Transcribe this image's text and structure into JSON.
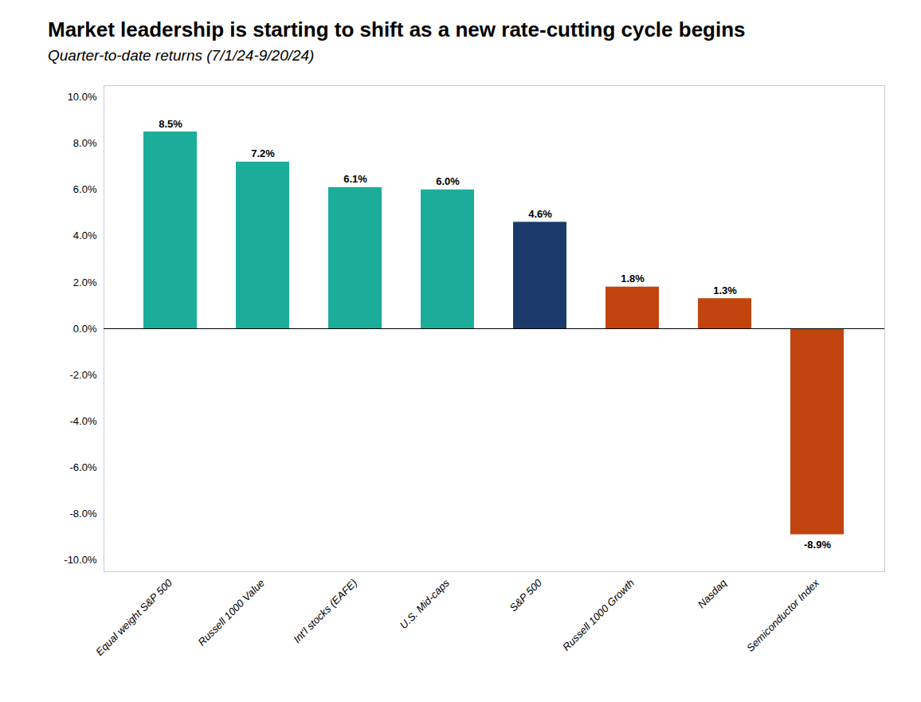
{
  "chart_data": {
    "type": "bar",
    "title": "Market leadership is starting to shift as a new rate-cutting cycle begins",
    "subtitle": "Quarter-to-date returns (7/1/24-9/20/24)",
    "categories": [
      "Equal weight S&P 500",
      "Russell 1000 Value",
      "Int'l stocks (EAFE)",
      "U.S. Mid-caps",
      "S&P 500",
      "Russell 1000 Growth",
      "Nasdaq",
      "Semiconductor Index"
    ],
    "values": [
      8.5,
      7.2,
      6.1,
      6.0,
      4.6,
      1.8,
      1.3,
      -8.9
    ],
    "value_labels": [
      "8.5%",
      "7.2%",
      "6.1%",
      "6.0%",
      "4.6%",
      "1.8%",
      "1.3%",
      "-8.9%"
    ],
    "colors": [
      "#1BAD99",
      "#1BAD99",
      "#1BAD99",
      "#1BAD99",
      "#1B3A6B",
      "#C1440E",
      "#C1440E",
      "#C1440E"
    ],
    "ylim": [
      -10.5,
      10.5
    ],
    "yticks": [
      {
        "value": -10.0,
        "label": "-10.0%"
      },
      {
        "value": -8.0,
        "label": "-8.0%"
      },
      {
        "value": -6.0,
        "label": "-6.0%"
      },
      {
        "value": -4.0,
        "label": "-4.0%"
      },
      {
        "value": -2.0,
        "label": "-2.0%"
      },
      {
        "value": 0.0,
        "label": "0.0%"
      },
      {
        "value": 2.0,
        "label": "2.0%"
      },
      {
        "value": 4.0,
        "label": "4.0%"
      },
      {
        "value": 6.0,
        "label": "6.0%"
      },
      {
        "value": 8.0,
        "label": "8.0%"
      },
      {
        "value": 10.0,
        "label": "10.0%"
      }
    ],
    "grid": false,
    "data_labels": true
  }
}
